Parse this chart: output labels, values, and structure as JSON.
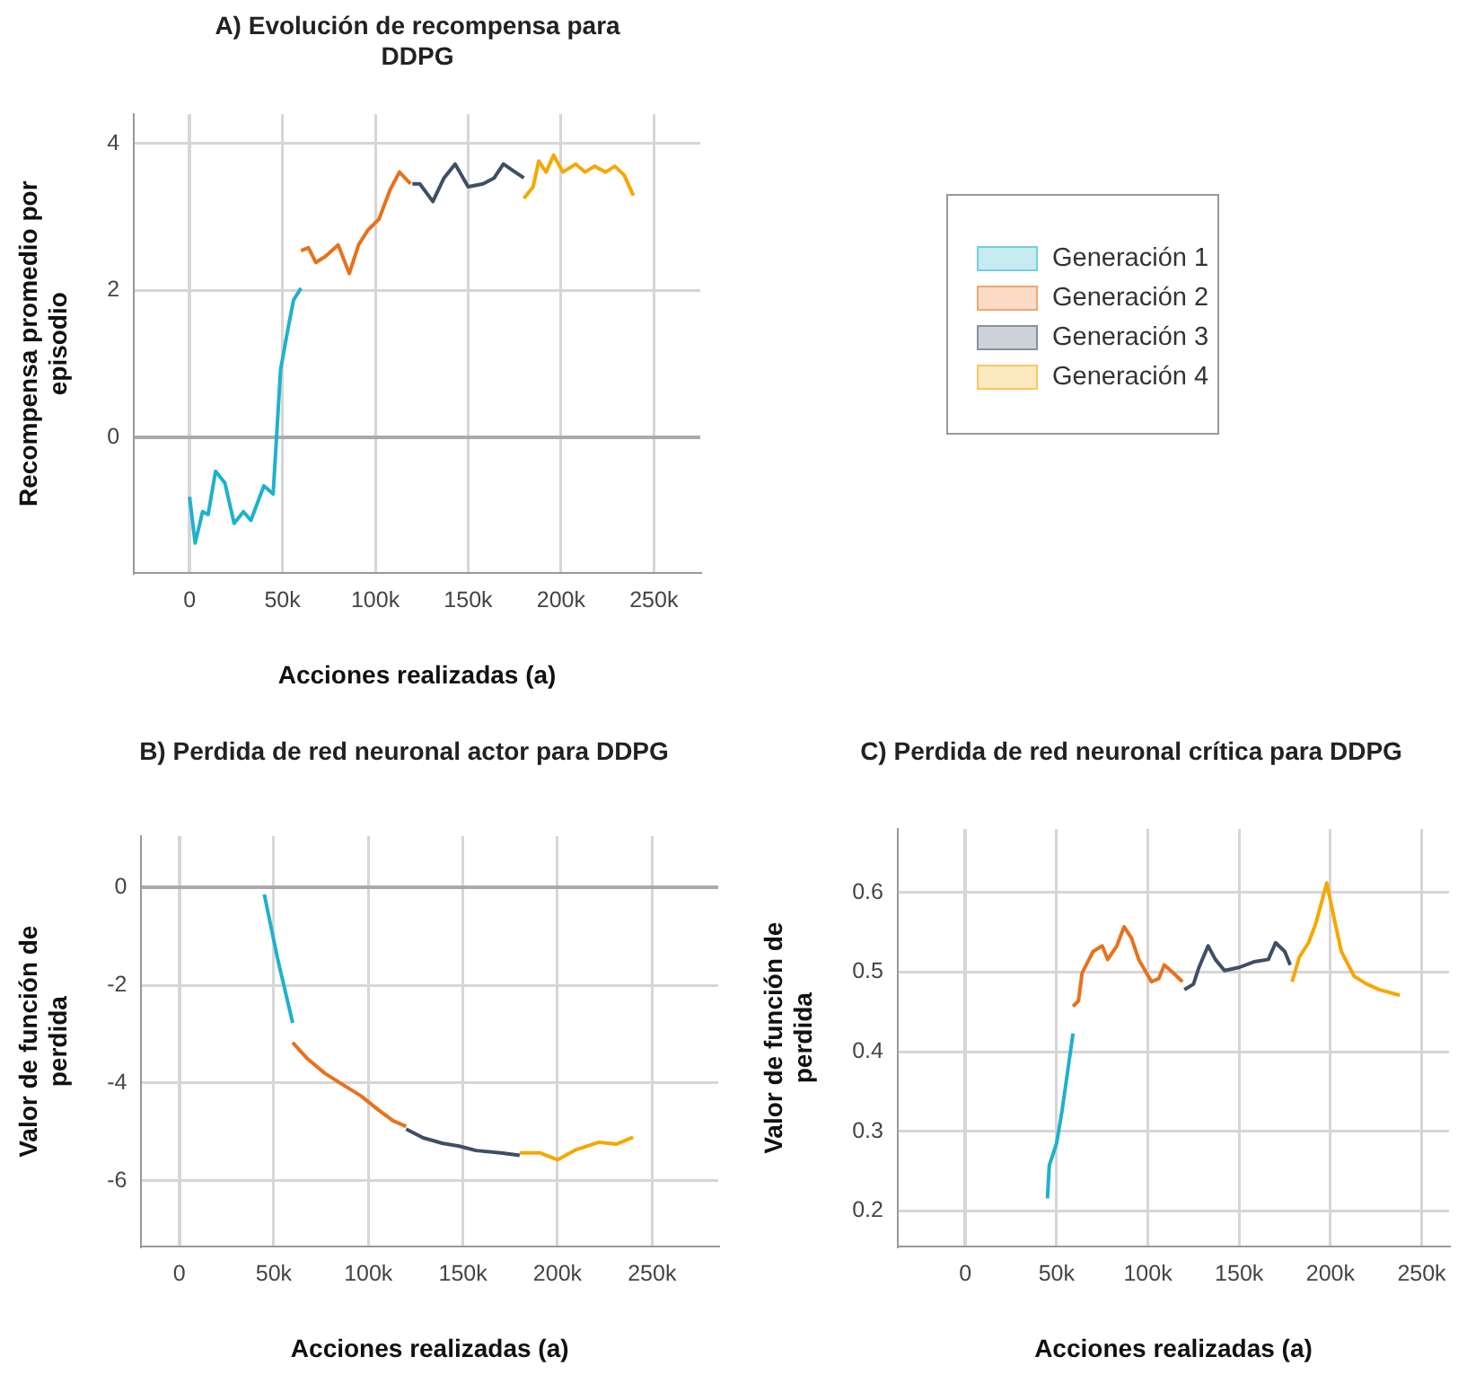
{
  "chart_data": [
    {
      "type": "line",
      "title": "A) Evolución de recompensa para DDPG",
      "xlabel": "Acciones realizadas (a)",
      "ylabel": "Recompensa promedio por episodio",
      "xlim": [
        -30000,
        275000
      ],
      "ylim": [
        -1.85,
        4.4
      ],
      "xticks": [
        {
          "value": 0,
          "label": "0"
        },
        {
          "value": 50000,
          "label": "50k"
        },
        {
          "value": 100000,
          "label": "100k"
        },
        {
          "value": 150000,
          "label": "150k"
        },
        {
          "value": 200000,
          "label": "200k"
        },
        {
          "value": 250000,
          "label": "250k"
        }
      ],
      "yticks": [
        0,
        2,
        4
      ],
      "grid": true,
      "legend": "right",
      "marker": "none",
      "series": [
        {
          "name": "Generación 1",
          "color": "#1fb1cc",
          "x": [
            0,
            3000,
            7000,
            10000,
            14000,
            19000,
            24000,
            29000,
            33000,
            40000,
            45000,
            49000,
            53000,
            56000,
            60000
          ],
          "values": [
            -0.81,
            -1.44,
            -1.01,
            -1.05,
            -0.46,
            -0.62,
            -1.17,
            -1.01,
            -1.13,
            -0.66,
            -0.77,
            0.92,
            1.48,
            1.87,
            2.03
          ]
        },
        {
          "name": "Generación 2",
          "color": "#e8711b",
          "x": [
            60000,
            64000,
            68000,
            73000,
            80000,
            86000,
            91000,
            96000,
            102000,
            108000,
            113000,
            119000
          ],
          "values": [
            2.54,
            2.58,
            2.38,
            2.46,
            2.62,
            2.23,
            2.62,
            2.82,
            2.97,
            3.37,
            3.61,
            3.45
          ]
        },
        {
          "name": "Generación 3",
          "color": "#3d4f66",
          "x": [
            120000,
            124000,
            131000,
            137000,
            143000,
            150000,
            158000,
            164000,
            169000,
            173000,
            180000
          ],
          "values": [
            3.45,
            3.45,
            3.21,
            3.53,
            3.72,
            3.41,
            3.45,
            3.53,
            3.72,
            3.65,
            3.53
          ]
        },
        {
          "name": "Generación 4",
          "color": "#f5a800",
          "x": [
            180000,
            185000,
            188000,
            192000,
            196000,
            201000,
            208000,
            213000,
            218000,
            224000,
            229000,
            234000,
            239000
          ],
          "values": [
            3.25,
            3.41,
            3.76,
            3.61,
            3.84,
            3.61,
            3.72,
            3.61,
            3.69,
            3.61,
            3.69,
            3.57,
            3.29
          ]
        }
      ]
    },
    {
      "type": "line",
      "title": "B) Perdida de red neuronal actor para DDPG",
      "xlabel": "Acciones realizadas (a)",
      "ylabel": "Valor de función de perdida",
      "xlim": [
        -20000,
        285000
      ],
      "ylim": [
        -7.35,
        1.05
      ],
      "xticks": [
        {
          "value": 0,
          "label": "0"
        },
        {
          "value": 50000,
          "label": "50k"
        },
        {
          "value": 100000,
          "label": "100k"
        },
        {
          "value": 150000,
          "label": "150k"
        },
        {
          "value": 200000,
          "label": "200k"
        },
        {
          "value": 250000,
          "label": "250k"
        }
      ],
      "yticks": [
        0,
        -2,
        -4,
        -6
      ],
      "grid": true,
      "marker": "none",
      "series": [
        {
          "color": "#1fb1cc",
          "x": [
            45000,
            52000,
            60000
          ],
          "values": [
            -0.14,
            -1.45,
            -2.77
          ]
        },
        {
          "color": "#e8711b",
          "x": [
            60000,
            68000,
            77000,
            86000,
            96000,
            105000,
            113000,
            120000
          ],
          "values": [
            -3.17,
            -3.51,
            -3.8,
            -4.02,
            -4.26,
            -4.54,
            -4.77,
            -4.89
          ]
        },
        {
          "color": "#3d4f66",
          "x": [
            120000,
            129000,
            139000,
            148000,
            157000,
            170000,
            180000
          ],
          "values": [
            -4.94,
            -5.12,
            -5.23,
            -5.29,
            -5.38,
            -5.43,
            -5.48
          ]
        },
        {
          "color": "#f5a800",
          "x": [
            180000,
            191000,
            200000,
            210000,
            222000,
            231000,
            240000
          ],
          "values": [
            -5.43,
            -5.43,
            -5.57,
            -5.36,
            -5.21,
            -5.25,
            -5.11
          ]
        }
      ]
    },
    {
      "type": "line",
      "title": "C) Perdida de red neuronal crítica para DDPG",
      "xlabel": "Acciones realizadas (a)",
      "ylabel": "Valor de función de perdida",
      "xlim": [
        -37000,
        265000
      ],
      "ylim": [
        0.155,
        0.68
      ],
      "xticks": [
        {
          "value": 0,
          "label": "0"
        },
        {
          "value": 50000,
          "label": "50k"
        },
        {
          "value": 100000,
          "label": "100k"
        },
        {
          "value": 150000,
          "label": "150k"
        },
        {
          "value": 200000,
          "label": "200k"
        },
        {
          "value": 250000,
          "label": "250k"
        }
      ],
      "yticks": [
        0.2,
        0.3,
        0.4,
        0.5,
        0.6
      ],
      "grid": true,
      "marker": "none",
      "series": [
        {
          "color": "#1fb1cc",
          "x": [
            45000,
            46000,
            50000,
            53000,
            56000,
            59000
          ],
          "values": [
            0.216,
            0.257,
            0.285,
            0.326,
            0.374,
            0.423
          ]
        },
        {
          "color": "#e8711b",
          "x": [
            59000,
            62000,
            64000,
            70000,
            75000,
            78000,
            83000,
            87000,
            91000,
            95000,
            102000,
            106000,
            109000,
            114000,
            119000
          ],
          "values": [
            0.457,
            0.464,
            0.499,
            0.526,
            0.533,
            0.516,
            0.533,
            0.557,
            0.543,
            0.516,
            0.488,
            0.492,
            0.509,
            0.499,
            0.488
          ]
        },
        {
          "color": "#3d4f66",
          "x": [
            120000,
            125000,
            128000,
            133000,
            137000,
            142000,
            150000,
            158000,
            166000,
            170000,
            175000,
            178000
          ],
          "values": [
            0.478,
            0.485,
            0.506,
            0.533,
            0.516,
            0.502,
            0.506,
            0.513,
            0.516,
            0.537,
            0.526,
            0.509
          ]
        },
        {
          "color": "#f5a800",
          "x": [
            179000,
            183000,
            188000,
            192000,
            198000,
            202000,
            206000,
            213000,
            220000,
            227000,
            238000
          ],
          "values": [
            0.488,
            0.519,
            0.537,
            0.561,
            0.612,
            0.568,
            0.526,
            0.495,
            0.485,
            0.478,
            0.471
          ]
        }
      ]
    }
  ]
}
